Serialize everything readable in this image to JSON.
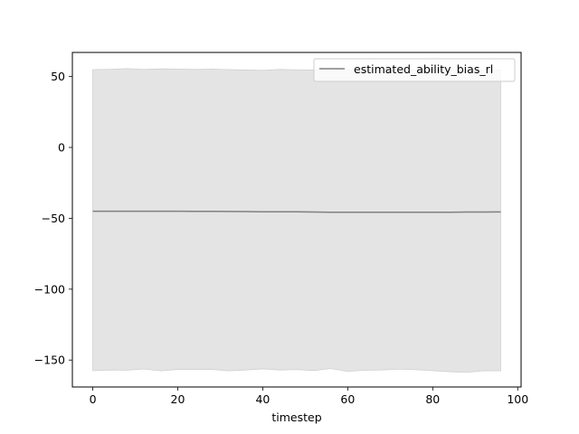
{
  "chart_data": {
    "type": "line",
    "xlabel": "timestep",
    "ylabel": "",
    "title": "",
    "xlim": [
      -4.8,
      100.8
    ],
    "ylim": [
      -169,
      67
    ],
    "xticks": [
      0,
      20,
      40,
      60,
      80,
      100
    ],
    "xtick_labels": [
      "0",
      "20",
      "40",
      "60",
      "80",
      "100"
    ],
    "yticks": [
      50,
      0,
      -50,
      -100,
      -150
    ],
    "ytick_labels": [
      "50",
      "0",
      "−50",
      "−100",
      "−150"
    ],
    "legend": {
      "position": "top-right",
      "entries": [
        "estimated_ability_bias_rl"
      ]
    },
    "grid": false,
    "colors": {
      "line": "#808080",
      "band": "#e4e4e4",
      "band_edge": "#d0d0d0"
    },
    "series": [
      {
        "name": "estimated_ability_bias_rl",
        "x": [
          0,
          4,
          8,
          12,
          16,
          20,
          24,
          28,
          32,
          36,
          40,
          44,
          48,
          52,
          56,
          60,
          64,
          68,
          72,
          76,
          80,
          84,
          88,
          92,
          96
        ],
        "mean": [
          -45.0,
          -45.0,
          -45.0,
          -45.0,
          -45.0,
          -45.0,
          -45.1,
          -45.1,
          -45.2,
          -45.3,
          -45.4,
          -45.4,
          -45.4,
          -45.6,
          -45.7,
          -45.7,
          -45.7,
          -45.7,
          -45.7,
          -45.7,
          -45.7,
          -45.7,
          -45.6,
          -45.6,
          -45.5
        ],
        "upper": [
          54.9,
          55.1,
          55.6,
          55.0,
          55.4,
          55.3,
          55.0,
          55.3,
          54.9,
          54.6,
          54.4,
          55.0,
          54.7,
          54.6,
          54.5,
          54.6,
          54.7,
          54.2,
          54.5,
          54.6,
          54.3,
          54.5,
          54.2,
          54.4,
          54.6
        ],
        "lower": [
          -157.5,
          -157.0,
          -157.2,
          -156.3,
          -157.6,
          -156.6,
          -156.6,
          -156.6,
          -157.6,
          -157.0,
          -156.2,
          -157.0,
          -156.7,
          -157.4,
          -156.0,
          -158.0,
          -157.2,
          -157.0,
          -156.4,
          -156.8,
          -157.5,
          -158.2,
          -158.7,
          -157.5,
          -157.6
        ]
      }
    ]
  }
}
